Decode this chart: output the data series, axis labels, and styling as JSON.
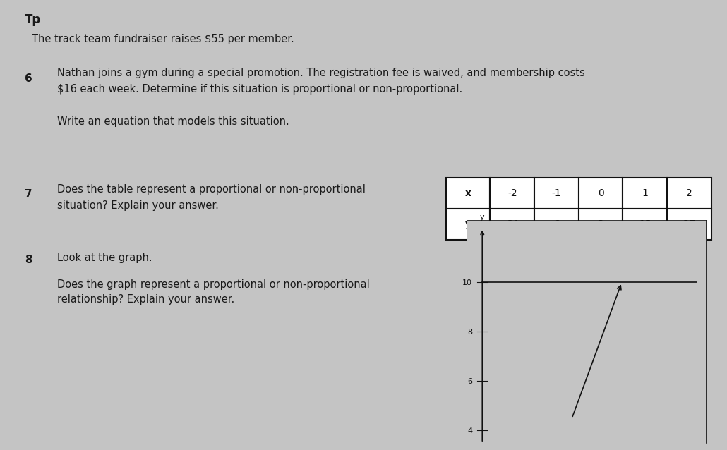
{
  "bg_color": "#c4c4c4",
  "title_top_partial": "Tp",
  "title_text": "The track team fundraiser raises $55 per member.",
  "q6_number": "6",
  "q6_text_line1": "Nathan joins a gym during a special promotion. The registration fee is waived, and membership costs",
  "q6_text_line2": "$16 each week. Determine if this situation is proportional or non-proportional.",
  "q6_sub": "Write an equation that models this situation.",
  "q7_number": "7",
  "q7_text_line1": "Does the table represent a proportional or non-proportional",
  "q7_text_line2": "situation? Explain your answer.",
  "table_x_vals": [
    "-2",
    "-1",
    "0",
    "1",
    "2"
  ],
  "table_y_vals": [
    "-21",
    "-9",
    "3",
    "15",
    "27"
  ],
  "q8_number": "8",
  "q8_text_line1": "Look at the graph.",
  "q8_text_line2": "Does the graph represent a proportional or non-proportional",
  "q8_text_line3": "relationship? Explain your answer.",
  "graph_yticks": [
    4,
    6,
    8,
    10
  ],
  "font_size_body": 10.5,
  "font_size_small": 9.5,
  "font_size_number": 11,
  "font_size_title": 10.5
}
